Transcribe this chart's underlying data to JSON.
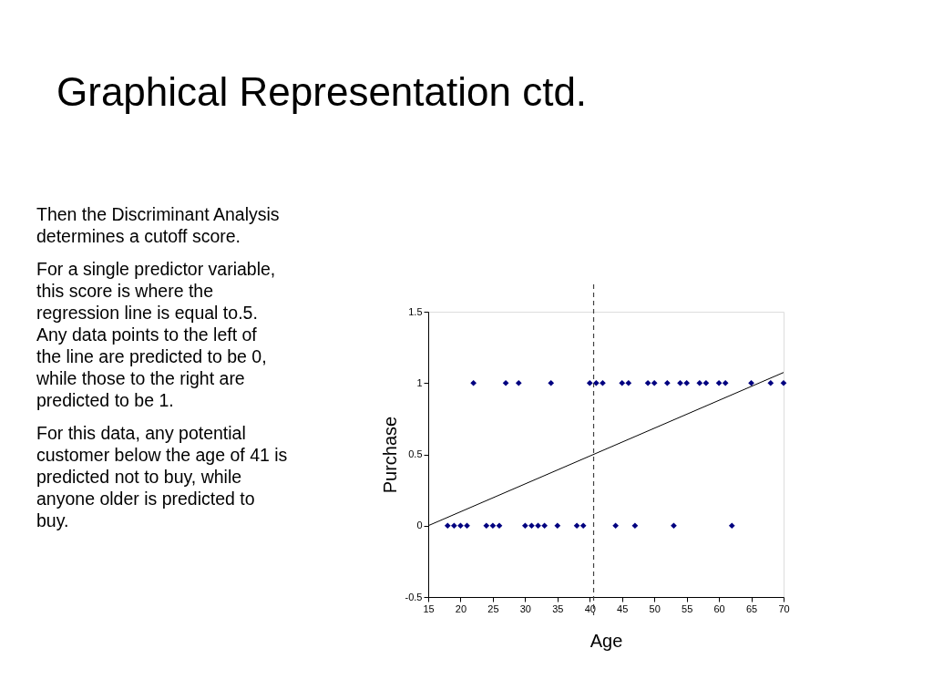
{
  "chart_data": {
    "type": "scatter",
    "title": "Graphical Representation ctd.",
    "xlabel": "Age",
    "ylabel": "Purchase",
    "annotations": [
      "Then the Discriminant Analysis determines a cutoff score.",
      "For a single predictor variable, this score is where the regression line is equal to.5. Any data points to the left of the line are predicted to be 0, while those to the right are predicted to be 1.",
      "For this data, any potential customer below the age of 41 is predicted not to buy, while anyone older is predicted to buy."
    ],
    "series": [
      {
        "color": "#000080",
        "marker": "diamond",
        "x": [
          22,
          27,
          29,
          34,
          40,
          41,
          42,
          45,
          46,
          49,
          50,
          52,
          54,
          55,
          57,
          58,
          60,
          61,
          65,
          68,
          70,
          18,
          19,
          20,
          21,
          24,
          25,
          26,
          30,
          31,
          32,
          33,
          35,
          38,
          39,
          44,
          47,
          53,
          62
        ],
        "values": [
          1,
          1,
          1,
          1,
          1,
          1,
          1,
          1,
          1,
          1,
          1,
          1,
          1,
          1,
          1,
          1,
          1,
          1,
          1,
          1,
          1,
          0,
          0,
          0,
          0,
          0,
          0,
          0,
          0,
          0,
          0,
          0,
          0,
          0,
          0,
          0,
          0,
          0,
          0
        ]
      },
      {
        "type": "line",
        "color": "#000000",
        "line_style": "solid",
        "x": [
          15,
          70
        ],
        "values": [
          0,
          1.074
        ]
      }
    ],
    "xlim": [
      15,
      70
    ],
    "xticks": [
      15,
      20,
      25,
      30,
      35,
      40,
      45,
      50,
      55,
      60,
      65,
      70
    ],
    "ylim": [
      -0.5,
      1.5
    ],
    "yticks": [
      -0.5,
      0,
      0.5,
      1,
      1.5
    ],
    "ref_lines": [
      {
        "axis": "x",
        "value": 40.6,
        "label": null,
        "color": "#404040",
        "line_style": "dashed"
      }
    ],
    "grid": false
  }
}
